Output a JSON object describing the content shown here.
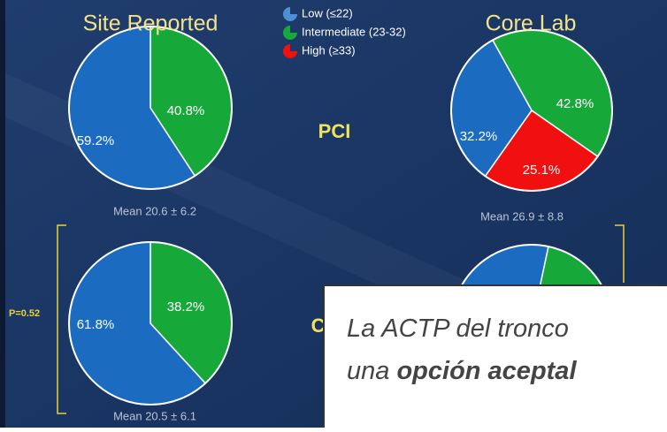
{
  "chart_data": [
    {
      "type": "pie",
      "title": "Site Reported",
      "values": [
        59.2,
        40.8
      ],
      "value_labels": [
        "59.2%",
        "40.8%"
      ],
      "colors": [
        "#1b6cc0",
        "#17a83a"
      ],
      "annotation": "Mean 20.6 ± 6.2"
    },
    {
      "type": "pie",
      "title": "Core Lab",
      "values": [
        32.2,
        42.8,
        25.1
      ],
      "value_labels": [
        "32.2%",
        "42.8%",
        "25.1%"
      ],
      "colors": [
        "#1b6cc0",
        "#17a83a",
        "#f01010"
      ],
      "annotation": "Mean 26.9 ± 8.8"
    },
    {
      "type": "pie",
      "values": [
        61.8,
        38.2
      ],
      "value_labels": [
        "61.8%",
        "38.2%"
      ],
      "colors": [
        "#1b6cc0",
        "#17a83a"
      ],
      "annotation": "Mean 20.5 ± 6.1"
    },
    {
      "type": "pie",
      "values": [
        35,
        45,
        20
      ],
      "colors": [
        "#1b6cc0",
        "#17a83a",
        "#f01010"
      ]
    }
  ],
  "legend": {
    "categories": [
      "Low (≤22)",
      "Intermediate (23-32)",
      "High (≥33)"
    ],
    "colors": [
      "#4f8fd6",
      "#17a83a",
      "#f01010"
    ]
  },
  "row_labels": [
    "PCI",
    "CABG"
  ],
  "p_value": "P=0.52",
  "overlay": {
    "lines": [
      [
        "La ACTP del tronco "
      ],
      [
        "una ",
        "opción aceptal"
      ]
    ]
  }
}
